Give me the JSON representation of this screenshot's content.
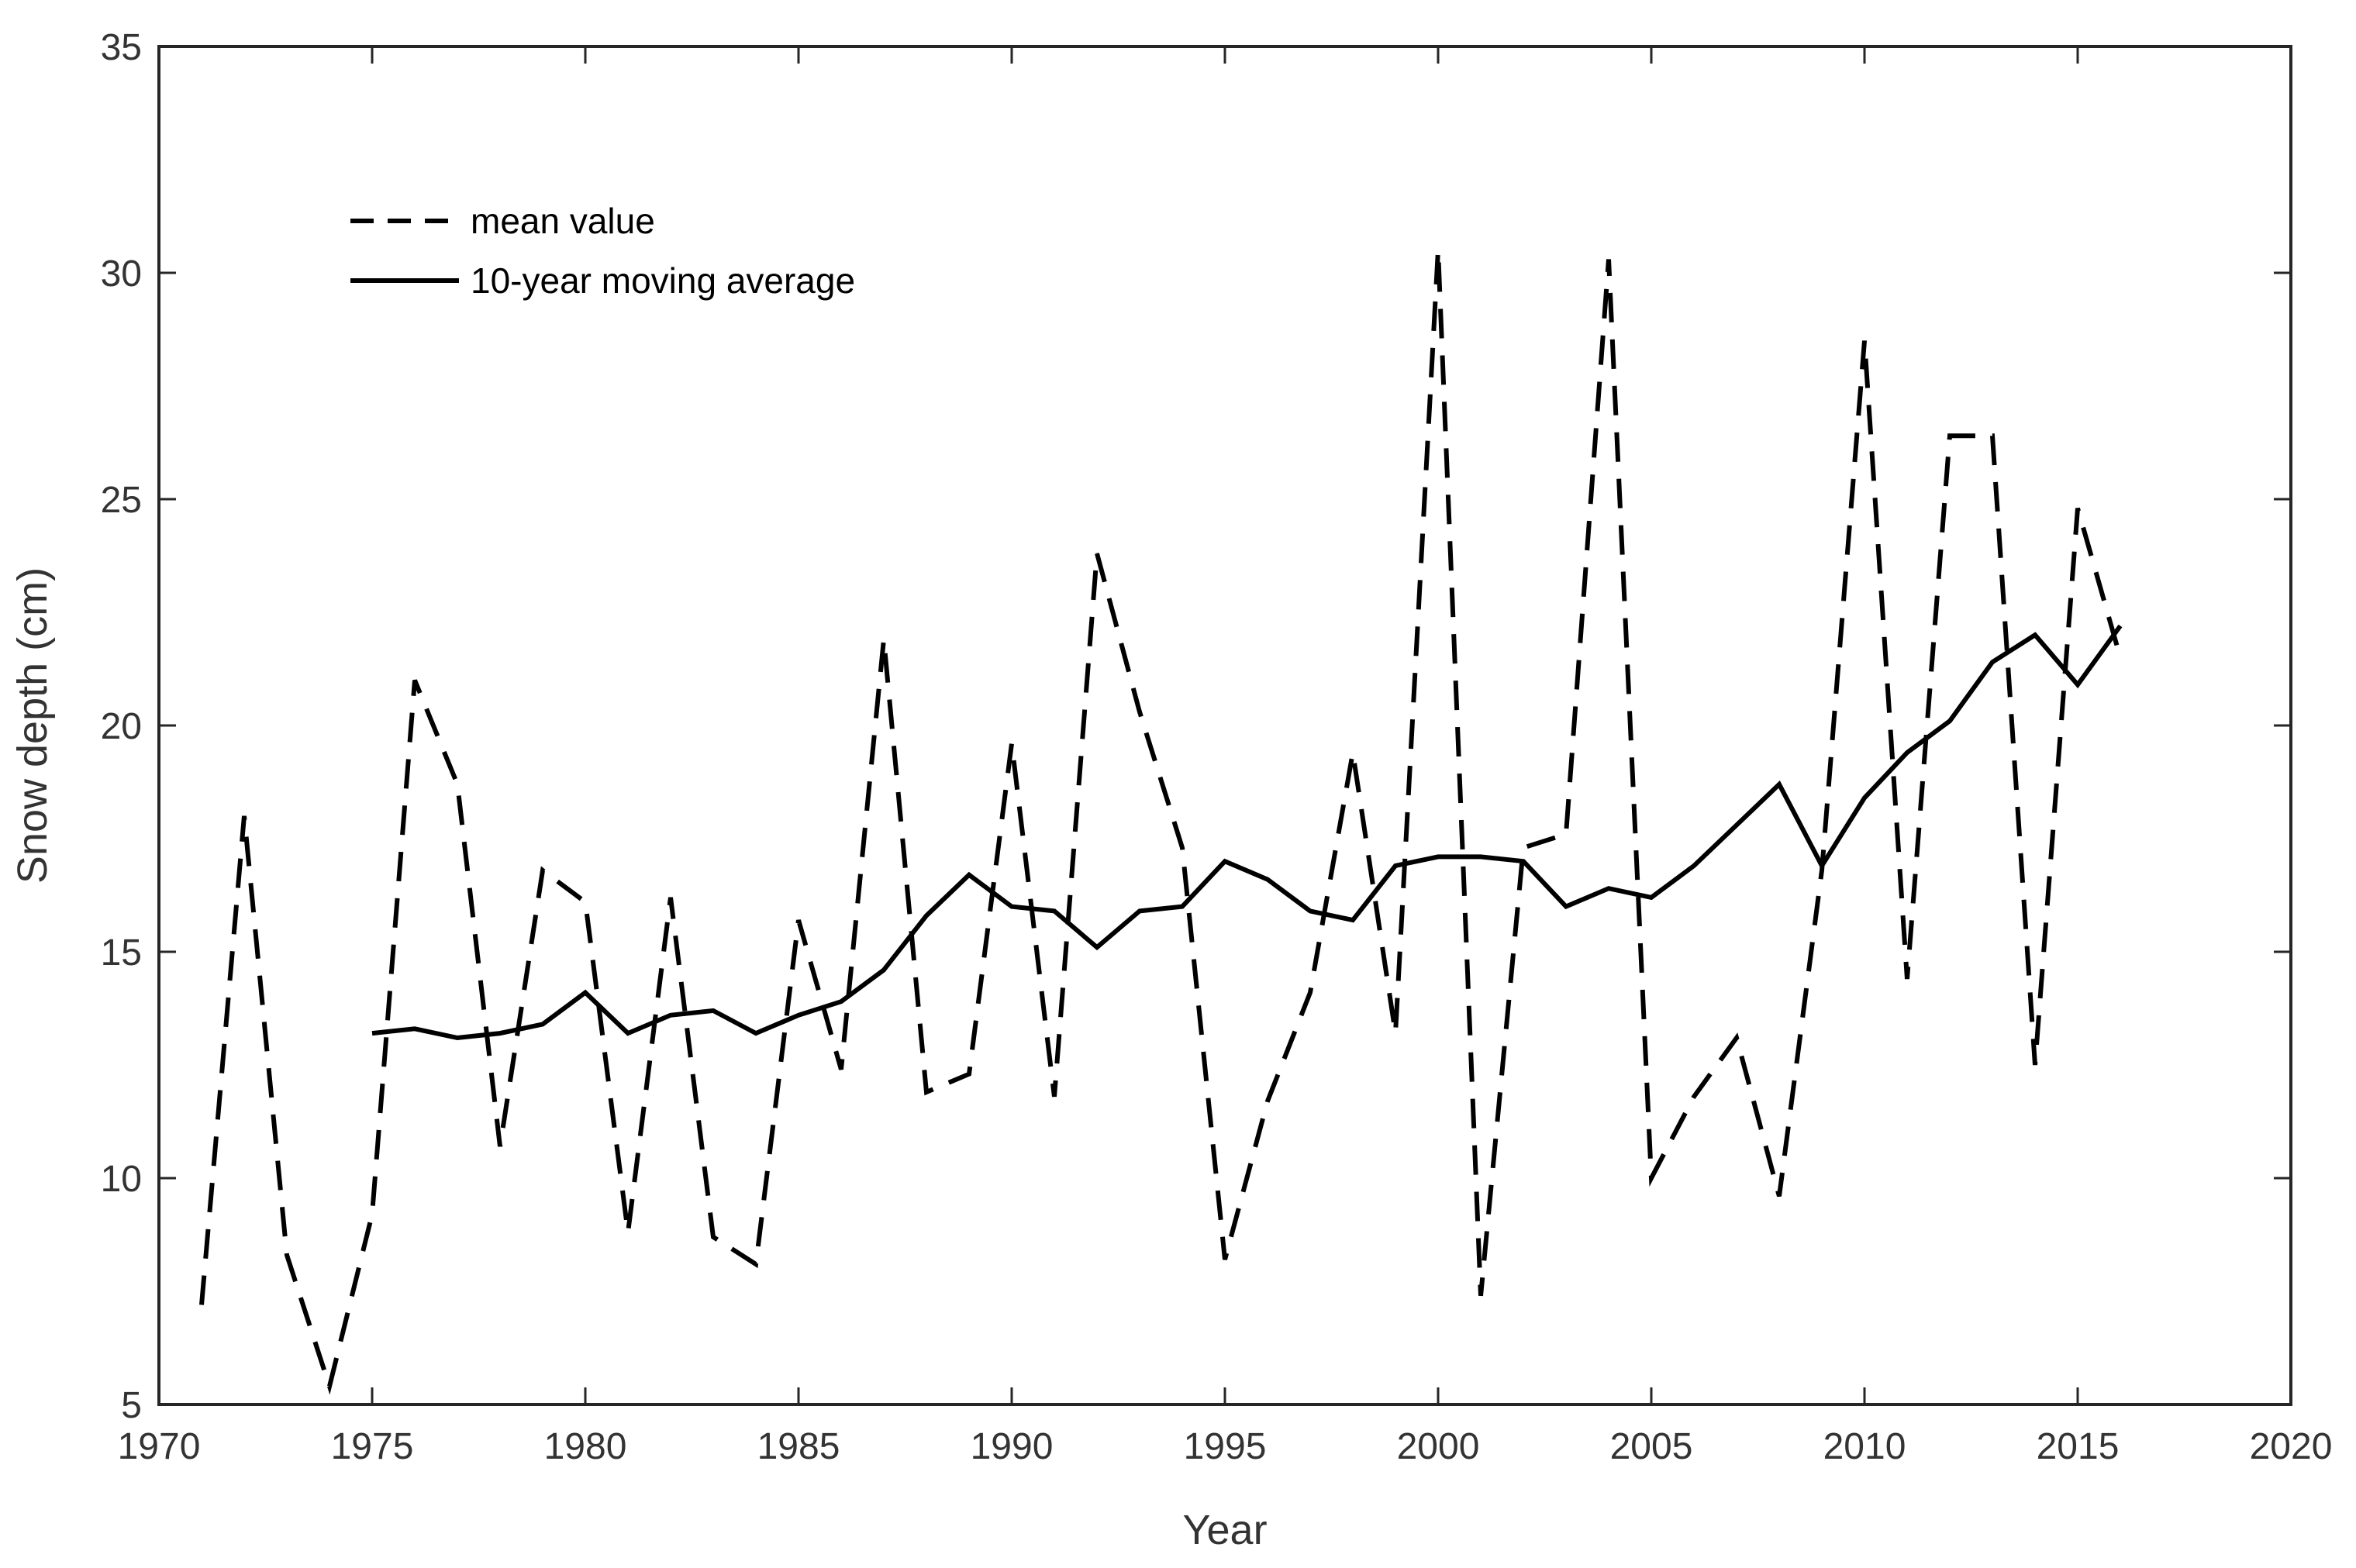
{
  "chart_data": {
    "type": "line",
    "title": "",
    "xlabel": "Year",
    "ylabel": "Snow depth (cm)",
    "xlim": [
      1970,
      2020
    ],
    "ylim": [
      5,
      35
    ],
    "xticks": [
      1970,
      1975,
      1980,
      1985,
      1990,
      1995,
      2000,
      2005,
      2010,
      2015,
      2020
    ],
    "yticks": [
      5,
      10,
      15,
      20,
      25,
      30,
      35
    ],
    "grid": false,
    "legend_position": "top-left",
    "series": [
      {
        "name": "mean value",
        "style": "dashed",
        "color": "#000000",
        "x": [
          1971,
          1972,
          1973,
          1974,
          1975,
          1976,
          1977,
          1978,
          1979,
          1980,
          1981,
          1982,
          1983,
          1984,
          1985,
          1986,
          1987,
          1988,
          1989,
          1990,
          1991,
          1992,
          1993,
          1994,
          1995,
          1996,
          1997,
          1998,
          1999,
          2000,
          2001,
          2002,
          2003,
          2004,
          2005,
          2006,
          2007,
          2008,
          2009,
          2010,
          2011,
          2012,
          2013,
          2014,
          2015,
          2016
        ],
        "values": [
          7.2,
          18.0,
          8.3,
          5.4,
          9.2,
          21.0,
          18.7,
          10.7,
          16.8,
          16.1,
          8.8,
          16.2,
          8.7,
          8.1,
          15.7,
          12.4,
          21.9,
          11.9,
          12.3,
          19.6,
          11.8,
          23.8,
          20.3,
          17.3,
          8.2,
          11.7,
          14.1,
          19.4,
          13.2,
          30.5,
          7.4,
          17.3,
          17.6,
          30.3,
          10.0,
          11.8,
          13.1,
          9.6,
          16.8,
          28.5,
          14.4,
          26.4,
          26.4,
          12.5,
          24.8,
          21.5
        ]
      },
      {
        "name": "10-year moving average",
        "style": "solid",
        "color": "#000000",
        "x": [
          1975,
          1976,
          1977,
          1978,
          1979,
          1980,
          1981,
          1982,
          1983,
          1984,
          1985,
          1986,
          1987,
          1988,
          1989,
          1990,
          1991,
          1992,
          1993,
          1994,
          1995,
          1996,
          1997,
          1998,
          1999,
          2000,
          2001,
          2002,
          2003,
          2004,
          2005,
          2006,
          2007,
          2008,
          2009,
          2010,
          2011,
          2012,
          2013,
          2014,
          2015,
          2016
        ],
        "values": [
          13.2,
          13.3,
          13.1,
          13.2,
          13.4,
          14.1,
          13.2,
          13.6,
          13.7,
          13.2,
          13.6,
          13.9,
          14.6,
          15.8,
          16.7,
          16.0,
          15.9,
          15.1,
          15.9,
          16.0,
          17.0,
          16.6,
          15.9,
          15.7,
          16.9,
          17.1,
          17.1,
          17.0,
          16.0,
          16.4,
          16.2,
          16.9,
          17.8,
          18.7,
          16.9,
          18.4,
          19.4,
          20.1,
          21.4,
          22.0,
          20.9,
          22.2
        ]
      }
    ]
  }
}
